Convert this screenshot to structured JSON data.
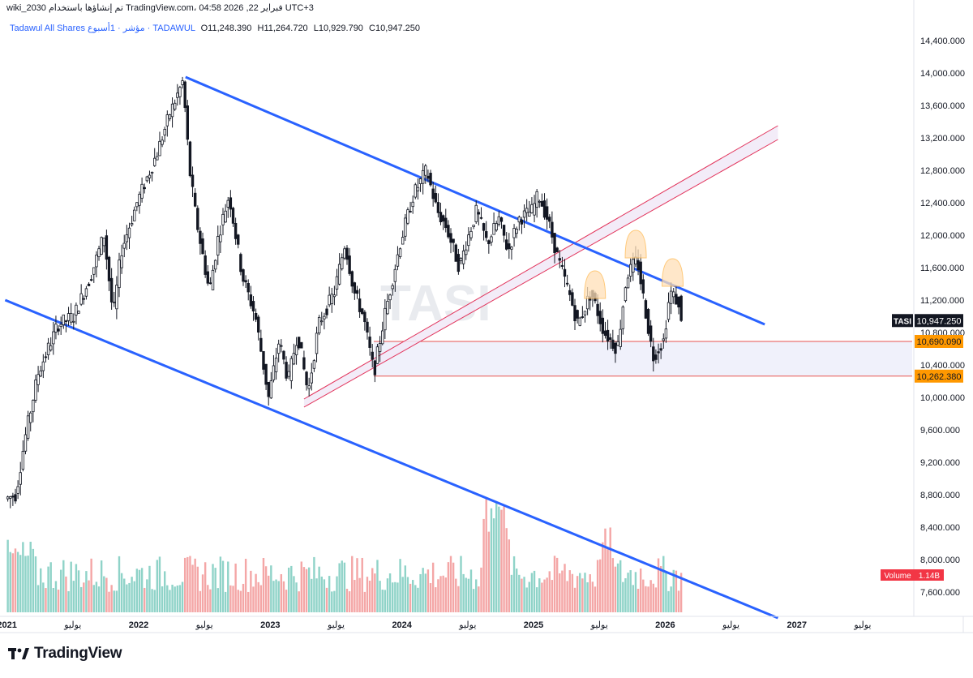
{
  "header": {
    "info_line": "wiki_2030 تم إنشاؤها باستخدام TradingView.com، 04:58 2026 ,22 فبراير UTC+3",
    "symbol_title": "Tadawul All Shares مؤشر · 1أسبوع · TADAWUL",
    "ohlc": [
      {
        "key": "O",
        "value": "11,248.390"
      },
      {
        "key": "H",
        "value": "11,264.720"
      },
      {
        "key": "L",
        "value": "10,929.790"
      },
      {
        "key": "C",
        "value": "10,947.250"
      }
    ]
  },
  "watermark": "TASI",
  "footer": {
    "brand": "TradingView"
  },
  "colors": {
    "up": "#131722",
    "volume_up": "#8fd3c8",
    "volume_down": "#f4a6a6",
    "trend": "#2962ff",
    "channel": "#e2335b",
    "support": "#e8534f",
    "axis_text": "#131722",
    "price_tag": "#131722",
    "level_tag": "#ff9800",
    "volume_tag": "#f23645"
  },
  "chart_data": {
    "type": "candlestick",
    "symbol": "TASI",
    "timeframe": "1W",
    "ylim": [
      7300,
      14700
    ],
    "y_ticks": [
      "7,600.000",
      "8,000.000",
      "8,400.000",
      "8,800.000",
      "9,200.000",
      "9,600.000",
      "10,000.000",
      "10,400.000",
      "10,800.000",
      "11,200.000",
      "11,600.000",
      "12,000.000",
      "12,400.000",
      "12,800.000",
      "13,200.000",
      "13,600.000",
      "14,000.000",
      "14,400.000"
    ],
    "x_ticks": [
      {
        "label": "2021",
        "t": 2021.0
      },
      {
        "label": "يوليو",
        "t": 2021.5
      },
      {
        "label": "2022",
        "t": 2022.0
      },
      {
        "label": "يوليو",
        "t": 2022.5
      },
      {
        "label": "2023",
        "t": 2023.0
      },
      {
        "label": "يوليو",
        "t": 2023.5
      },
      {
        "label": "2024",
        "t": 2024.0
      },
      {
        "label": "يوليو",
        "t": 2024.5
      },
      {
        "label": "2025",
        "t": 2025.0
      },
      {
        "label": "يوليو",
        "t": 2025.5
      },
      {
        "label": "2026",
        "t": 2026.0
      },
      {
        "label": "يوليو",
        "t": 2026.5
      },
      {
        "label": "2027",
        "t": 2027.0
      },
      {
        "label": "يوليو",
        "t": 2027.5
      }
    ],
    "price_path": [
      [
        2021.0,
        8750
      ],
      [
        2021.08,
        8800
      ],
      [
        2021.15,
        9500
      ],
      [
        2021.25,
        10300
      ],
      [
        2021.4,
        10900
      ],
      [
        2021.52,
        11000
      ],
      [
        2021.65,
        11500
      ],
      [
        2021.75,
        12000
      ],
      [
        2021.82,
        11000
      ],
      [
        2021.88,
        11800
      ],
      [
        2022.0,
        12400
      ],
      [
        2022.15,
        13000
      ],
      [
        2022.25,
        13500
      ],
      [
        2022.35,
        13900
      ],
      [
        2022.4,
        12800
      ],
      [
        2022.45,
        12200
      ],
      [
        2022.55,
        11300
      ],
      [
        2022.62,
        12000
      ],
      [
        2022.7,
        12500
      ],
      [
        2022.8,
        11500
      ],
      [
        2022.9,
        11000
      ],
      [
        2023.0,
        10000
      ],
      [
        2023.08,
        10700
      ],
      [
        2023.15,
        10200
      ],
      [
        2023.22,
        10800
      ],
      [
        2023.3,
        10050
      ],
      [
        2023.38,
        10900
      ],
      [
        2023.5,
        11300
      ],
      [
        2023.58,
        11900
      ],
      [
        2023.65,
        11300
      ],
      [
        2023.72,
        11000
      ],
      [
        2023.8,
        10300
      ],
      [
        2023.88,
        11000
      ],
      [
        2024.0,
        11900
      ],
      [
        2024.1,
        12500
      ],
      [
        2024.2,
        12800
      ],
      [
        2024.28,
        12300
      ],
      [
        2024.35,
        12100
      ],
      [
        2024.45,
        11600
      ],
      [
        2024.5,
        11900
      ],
      [
        2024.58,
        12300
      ],
      [
        2024.66,
        11900
      ],
      [
        2024.75,
        12200
      ],
      [
        2024.82,
        11800
      ],
      [
        2024.9,
        12200
      ],
      [
        2025.0,
        12300
      ],
      [
        2025.05,
        12500
      ],
      [
        2025.12,
        12200
      ],
      [
        2025.2,
        11700
      ],
      [
        2025.28,
        11300
      ],
      [
        2025.35,
        10900
      ],
      [
        2025.45,
        11300
      ],
      [
        2025.55,
        10800
      ],
      [
        2025.65,
        10600
      ],
      [
        2025.72,
        11500
      ],
      [
        2025.8,
        11700
      ],
      [
        2025.86,
        11100
      ],
      [
        2025.92,
        10500
      ],
      [
        2026.0,
        10700
      ],
      [
        2026.05,
        11300
      ],
      [
        2026.1,
        11200
      ],
      [
        2026.13,
        10950
      ]
    ],
    "last_price": 10947.25,
    "trendlines": [
      {
        "name": "upper-descending",
        "from": [
          2022.35,
          13950
        ],
        "to": [
          2026.75,
          10900
        ]
      },
      {
        "name": "lower-descending",
        "from": [
          2020.98,
          11200
        ],
        "to": [
          2026.85,
          7280
        ]
      }
    ],
    "rising_channel": {
      "upper": {
        "from": [
          2023.25,
          9980
        ],
        "to": [
          2026.85,
          13350
        ]
      },
      "lower": {
        "from": [
          2023.25,
          9880
        ],
        "to": [
          2026.85,
          13180
        ]
      }
    },
    "support_zone": {
      "upper": 10690.09,
      "lower": 10262.38,
      "from": 2023.78
    },
    "annotations": [
      {
        "type": "arch",
        "t": 2025.46,
        "price": 11400
      },
      {
        "type": "arch",
        "t": 2025.77,
        "price": 11900
      },
      {
        "type": "arch",
        "t": 2026.05,
        "price": 11550
      }
    ],
    "price_labels": [
      {
        "name": "last-price",
        "symbol": "TASI",
        "value": "10,947.250"
      },
      {
        "name": "zone-top",
        "value": "10,690.090"
      },
      {
        "name": "zone-bottom",
        "value": "10,262.380"
      }
    ],
    "volume": {
      "label": "Volume",
      "value": "1.14B",
      "peak_at": 2024.72
    }
  }
}
